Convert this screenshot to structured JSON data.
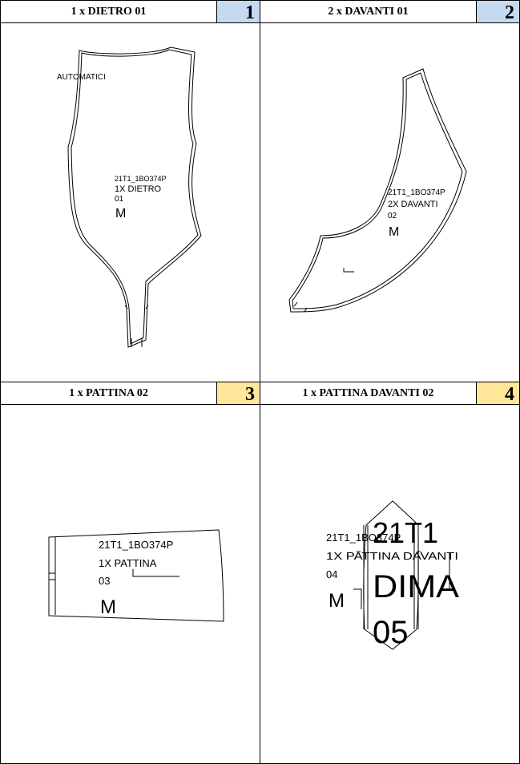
{
  "panels": [
    {
      "title": "1 x DIETRO 01",
      "number": "1",
      "number_bg": "#c5d9f1",
      "labels": [
        "AUTOMATICI",
        "21T1_1BO374P",
        "1X DIETRO",
        "01",
        "M"
      ]
    },
    {
      "title": "2 x DAVANTI 01",
      "number": "2",
      "number_bg": "#c5d9f1",
      "labels": [
        "21T1_1BO374P",
        "2X DAVANTI",
        "02",
        "M"
      ]
    },
    {
      "title": "1 x PATTINA 02",
      "number": "3",
      "number_bg": "#ffe699",
      "labels": [
        "21T1_1BO374P",
        "1X PATTINA",
        "03",
        "M"
      ]
    },
    {
      "title": "1 x PATTINA DAVANTI 02",
      "number": "4",
      "number_bg": "#ffe699",
      "labels": [
        "21T1_1BO374P",
        "1X PATTINA DAVANTI",
        "04",
        "M",
        "21T1",
        "DIMA",
        "05"
      ]
    }
  ]
}
